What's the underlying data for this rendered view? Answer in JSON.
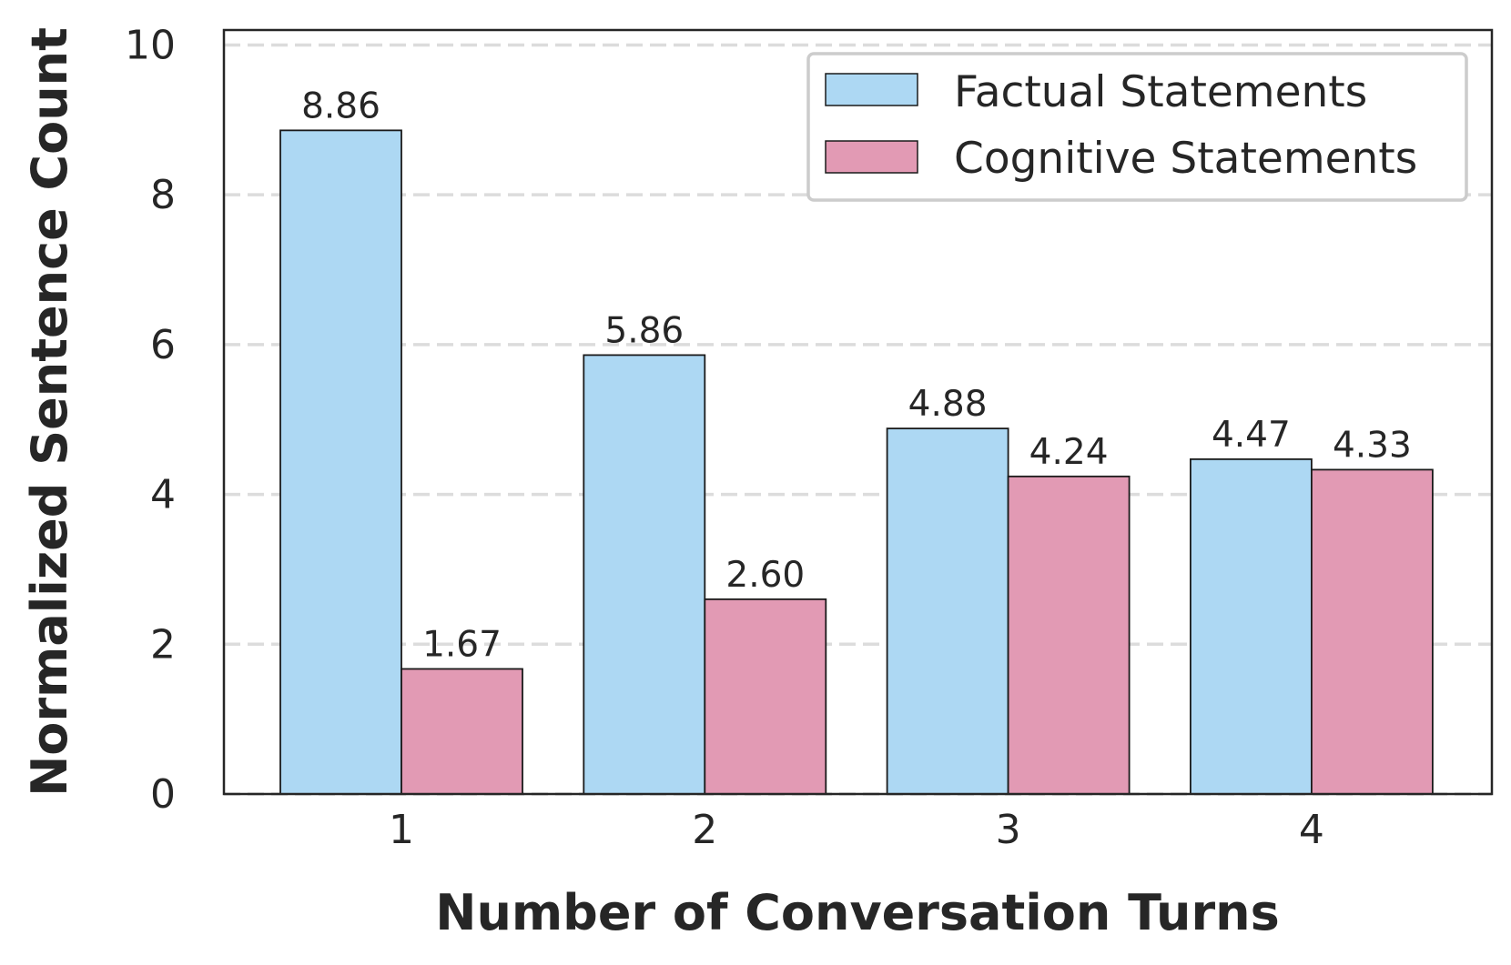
{
  "chart_data": {
    "type": "bar",
    "categories": [
      "1",
      "2",
      "3",
      "4"
    ],
    "series": [
      {
        "name": "Factual Statements",
        "values": [
          8.86,
          5.86,
          4.88,
          4.47
        ],
        "labels": [
          "8.86",
          "5.86",
          "4.88",
          "4.47"
        ],
        "color": "#add8f3"
      },
      {
        "name": "Cognitive Statements",
        "values": [
          1.67,
          2.6,
          4.24,
          4.33
        ],
        "labels": [
          "1.67",
          "2.60",
          "4.24",
          "4.33"
        ],
        "color": "#e29ab4"
      }
    ],
    "xlabel": "Number of Conversation Turns",
    "ylabel": "Normalized Sentence Count",
    "ylim": [
      0,
      10.2
    ],
    "yticks": [
      0,
      2,
      4,
      6,
      8,
      10
    ],
    "ytick_labels": [
      "0",
      "2",
      "4",
      "6",
      "8",
      "10"
    ],
    "grid": "horizontal dashed",
    "legend_position": "top-right"
  }
}
